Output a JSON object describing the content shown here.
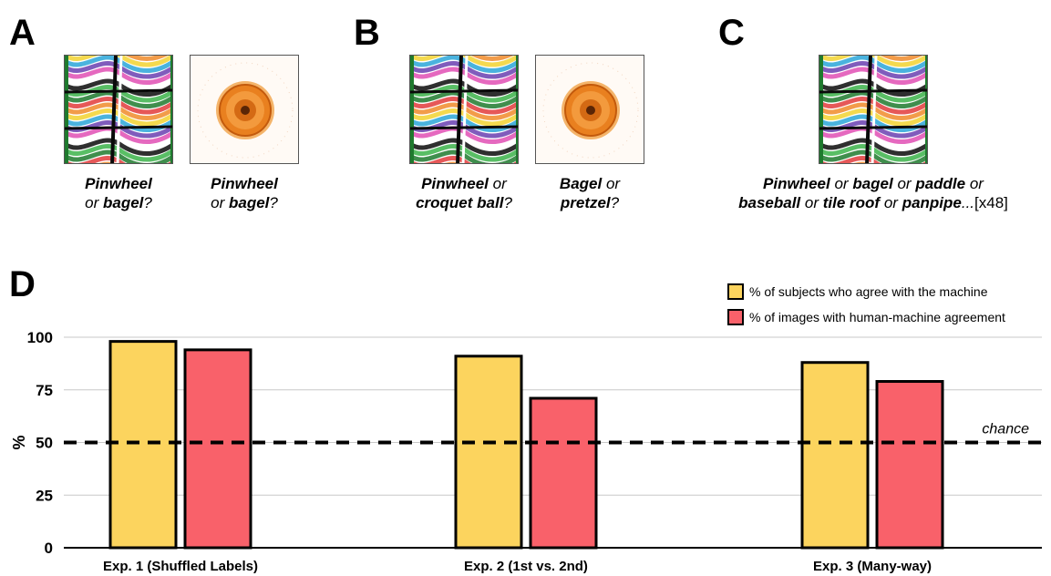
{
  "panels": {
    "a": {
      "letter": "A",
      "captions": [
        {
          "w1": "Pinwheel",
          "m1": "or",
          "w2": "bagel",
          "end": "?"
        },
        {
          "w1": "Pinwheel",
          "m1": "or",
          "w2": "bagel",
          "end": "?"
        }
      ]
    },
    "b": {
      "letter": "B",
      "captions": [
        {
          "w1": "Pinwheel",
          "m1": "or",
          "w2": "croquet ball",
          "end": "?"
        },
        {
          "w1": "Bagel",
          "m1": "or",
          "w2": "pretzel",
          "end": "?"
        }
      ]
    },
    "c": {
      "letter": "C",
      "caption": {
        "w1": "Pinwheel",
        "o1": "or",
        "w2": "bagel",
        "o2": "or",
        "w3": "paddle",
        "o3": "or",
        "w4": "baseball",
        "o4": "or",
        "w5": "tile roof",
        "o5": "or",
        "w6": "panpipe",
        "tail": "...",
        "count": "[x48]"
      }
    },
    "d": {
      "letter": "D"
    }
  },
  "colors": {
    "yellow": "#fcd45e",
    "red": "#f9616a",
    "grid": "#c8c8c8"
  },
  "chart_data": {
    "type": "bar",
    "categories": [
      "Exp. 1 (Shuffled Labels)",
      "Exp. 2 (1st vs. 2nd)",
      "Exp. 3 (Many-way)"
    ],
    "series": [
      {
        "name": "% of subjects who agree with the machine",
        "values": [
          98,
          91,
          88
        ],
        "color": "#fcd45e"
      },
      {
        "name": "% of images with human-machine agreement",
        "values": [
          94,
          71,
          79
        ],
        "color": "#f9616a"
      }
    ],
    "ylabel": "%",
    "ylim": [
      0,
      100
    ],
    "yticks": [
      0,
      25,
      50,
      75,
      100
    ],
    "grid": true,
    "chance_line": {
      "value": 50,
      "label": "chance"
    },
    "legend_position": "top-right"
  }
}
